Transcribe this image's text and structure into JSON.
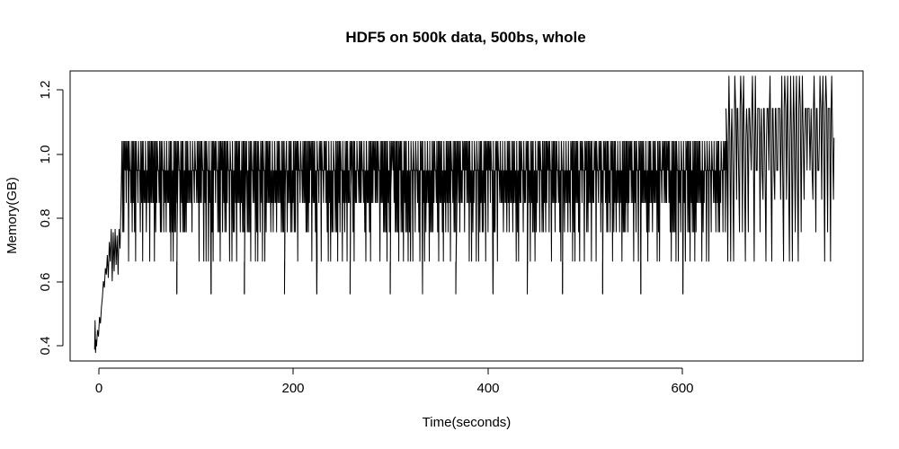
{
  "chart_data": {
    "type": "line",
    "title": "HDF5 on 500k data, 500bs, whole",
    "xlabel": "Time(seconds)",
    "ylabel": "Memory(GB)",
    "xlim": [
      -25,
      785
    ],
    "ylim": [
      0.355,
      1.245
    ],
    "xticks": [
      0,
      200,
      400,
      600
    ],
    "yticks": [
      0.4,
      0.6,
      0.8,
      1.0,
      1.2
    ],
    "xtick_labels": [
      "0",
      "200",
      "400",
      "600"
    ],
    "ytick_labels": [
      "0.4",
      "0.6",
      "0.8",
      "1.0",
      "1.2"
    ],
    "grid": false,
    "line_color": "#000000",
    "series": [
      {
        "ramp_phase": {
          "x": [
            0,
            0.5,
            1,
            1.5,
            2,
            3,
            4,
            5,
            6,
            7,
            8,
            9,
            10,
            11,
            12,
            13,
            14,
            15,
            16,
            17,
            18,
            19,
            20,
            21,
            22,
            23,
            24,
            25,
            26,
            27
          ],
          "y": [
            0.39,
            0.48,
            0.38,
            0.42,
            0.4,
            0.45,
            0.43,
            0.49,
            0.47,
            0.52,
            0.55,
            0.6,
            0.58,
            0.64,
            0.62,
            0.68,
            0.61,
            0.72,
            0.66,
            0.76,
            0.6,
            0.75,
            0.63,
            0.76,
            0.65,
            0.74,
            0.62,
            0.76,
            0.7,
            0.84
          ]
        },
        "cycling_phase_1": {
          "x_start": 28,
          "x_end": 645,
          "cycle_seconds": 2.4,
          "levels": [
            0.66,
            0.75,
            0.84,
            0.94,
            1.03
          ],
          "max": 1.03,
          "min": 0.66
        },
        "dip_spikes": {
          "x": [
            84,
            119,
            153,
            194,
            227,
            261,
            302,
            335,
            369,
            407,
            442,
            478,
            519,
            558,
            601
          ],
          "y": 0.56
        },
        "cycling_phase_2": {
          "x_start": 645,
          "x_end": 755,
          "cycle_seconds": 3.0,
          "levels": [
            0.75,
            0.85,
            0.94,
            1.04,
            1.13,
            1.23
          ],
          "max": 1.23,
          "min": 0.66
        }
      }
    ]
  }
}
